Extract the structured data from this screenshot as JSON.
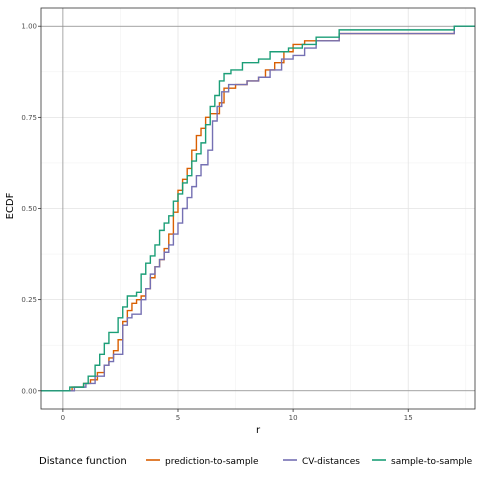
{
  "chart_data": {
    "type": "line",
    "step": true,
    "xlabel": "r",
    "ylabel": "ECDF",
    "xlim": [
      -0.95,
      17.9
    ],
    "ylim": [
      -0.05,
      1.05
    ],
    "x_ticks": [
      0,
      5,
      10,
      15
    ],
    "x_tick_labels": [
      "0",
      "5",
      "10",
      "15"
    ],
    "y_ticks": [
      0,
      0.25,
      0.5,
      0.75,
      1
    ],
    "y_tick_labels": [
      "0.00",
      "0.25",
      "0.50",
      "0.75",
      "1.00"
    ],
    "grid": true,
    "legend": {
      "title": "Distance function",
      "position": "bottom"
    },
    "series": [
      {
        "name": "prediction-to-sample",
        "color": "#D95F02",
        "points": [
          [
            -1,
            0
          ],
          [
            0,
            0
          ],
          [
            0.4,
            0.01
          ],
          [
            0.9,
            0.02
          ],
          [
            1.2,
            0.03
          ],
          [
            1.5,
            0.05
          ],
          [
            1.8,
            0.07
          ],
          [
            2.0,
            0.09
          ],
          [
            2.2,
            0.11
          ],
          [
            2.4,
            0.14
          ],
          [
            2.6,
            0.19
          ],
          [
            2.8,
            0.22
          ],
          [
            3.0,
            0.24
          ],
          [
            3.2,
            0.25
          ],
          [
            3.4,
            0.26
          ],
          [
            3.6,
            0.28
          ],
          [
            3.8,
            0.31
          ],
          [
            4.0,
            0.34
          ],
          [
            4.2,
            0.36
          ],
          [
            4.4,
            0.39
          ],
          [
            4.6,
            0.43
          ],
          [
            4.8,
            0.49
          ],
          [
            5.0,
            0.55
          ],
          [
            5.2,
            0.58
          ],
          [
            5.4,
            0.61
          ],
          [
            5.6,
            0.66
          ],
          [
            5.8,
            0.7
          ],
          [
            6.0,
            0.72
          ],
          [
            6.2,
            0.75
          ],
          [
            6.4,
            0.76
          ],
          [
            6.6,
            0.76
          ],
          [
            6.8,
            0.79
          ],
          [
            7.0,
            0.83
          ],
          [
            7.5,
            0.84
          ],
          [
            8.0,
            0.85
          ],
          [
            8.5,
            0.86
          ],
          [
            8.8,
            0.88
          ],
          [
            9.2,
            0.9
          ],
          [
            9.6,
            0.93
          ],
          [
            10.0,
            0.95
          ],
          [
            10.5,
            0.96
          ],
          [
            11.0,
            0.96
          ],
          [
            12.0,
            0.98
          ],
          [
            17.0,
            1.0
          ],
          [
            17.9,
            1.0
          ]
        ]
      },
      {
        "name": "CV-distances",
        "color": "#7570B3",
        "points": [
          [
            -1,
            0
          ],
          [
            0,
            0
          ],
          [
            0.5,
            0.01
          ],
          [
            1.0,
            0.02
          ],
          [
            1.4,
            0.04
          ],
          [
            1.8,
            0.07
          ],
          [
            2.0,
            0.08
          ],
          [
            2.2,
            0.1
          ],
          [
            2.6,
            0.18
          ],
          [
            2.8,
            0.2
          ],
          [
            3.0,
            0.21
          ],
          [
            3.4,
            0.25
          ],
          [
            3.6,
            0.28
          ],
          [
            3.8,
            0.32
          ],
          [
            4.0,
            0.34
          ],
          [
            4.2,
            0.36
          ],
          [
            4.4,
            0.38
          ],
          [
            4.6,
            0.4
          ],
          [
            4.8,
            0.43
          ],
          [
            5.0,
            0.46
          ],
          [
            5.2,
            0.5
          ],
          [
            5.4,
            0.53
          ],
          [
            5.6,
            0.56
          ],
          [
            5.8,
            0.59
          ],
          [
            6.0,
            0.62
          ],
          [
            6.3,
            0.66
          ],
          [
            6.5,
            0.74
          ],
          [
            6.7,
            0.78
          ],
          [
            6.9,
            0.82
          ],
          [
            7.2,
            0.84
          ],
          [
            8.0,
            0.85
          ],
          [
            8.5,
            0.86
          ],
          [
            9.0,
            0.88
          ],
          [
            9.5,
            0.91
          ],
          [
            10.0,
            0.92
          ],
          [
            10.5,
            0.94
          ],
          [
            11.0,
            0.96
          ],
          [
            12.0,
            0.98
          ],
          [
            17.0,
            1.0
          ],
          [
            17.9,
            1.0
          ]
        ]
      },
      {
        "name": "sample-to-sample",
        "color": "#1B9E77",
        "points": [
          [
            -1,
            0
          ],
          [
            0,
            0
          ],
          [
            0.3,
            0.01
          ],
          [
            0.9,
            0.02
          ],
          [
            1.1,
            0.04
          ],
          [
            1.4,
            0.07
          ],
          [
            1.6,
            0.1
          ],
          [
            1.8,
            0.13
          ],
          [
            2.0,
            0.16
          ],
          [
            2.4,
            0.2
          ],
          [
            2.6,
            0.23
          ],
          [
            2.8,
            0.26
          ],
          [
            3.2,
            0.27
          ],
          [
            3.4,
            0.32
          ],
          [
            3.6,
            0.35
          ],
          [
            3.8,
            0.37
          ],
          [
            4.0,
            0.4
          ],
          [
            4.2,
            0.44
          ],
          [
            4.4,
            0.46
          ],
          [
            4.6,
            0.48
          ],
          [
            4.8,
            0.52
          ],
          [
            5.0,
            0.54
          ],
          [
            5.2,
            0.57
          ],
          [
            5.4,
            0.59
          ],
          [
            5.6,
            0.63
          ],
          [
            5.8,
            0.65
          ],
          [
            6.0,
            0.68
          ],
          [
            6.2,
            0.73
          ],
          [
            6.4,
            0.78
          ],
          [
            6.6,
            0.81
          ],
          [
            6.8,
            0.85
          ],
          [
            7.0,
            0.87
          ],
          [
            7.3,
            0.88
          ],
          [
            7.8,
            0.9
          ],
          [
            8.5,
            0.91
          ],
          [
            9.0,
            0.93
          ],
          [
            9.8,
            0.94
          ],
          [
            10.4,
            0.95
          ],
          [
            11.0,
            0.97
          ],
          [
            12.0,
            0.99
          ],
          [
            17.0,
            1.0
          ],
          [
            17.9,
            1.0
          ]
        ]
      }
    ]
  }
}
